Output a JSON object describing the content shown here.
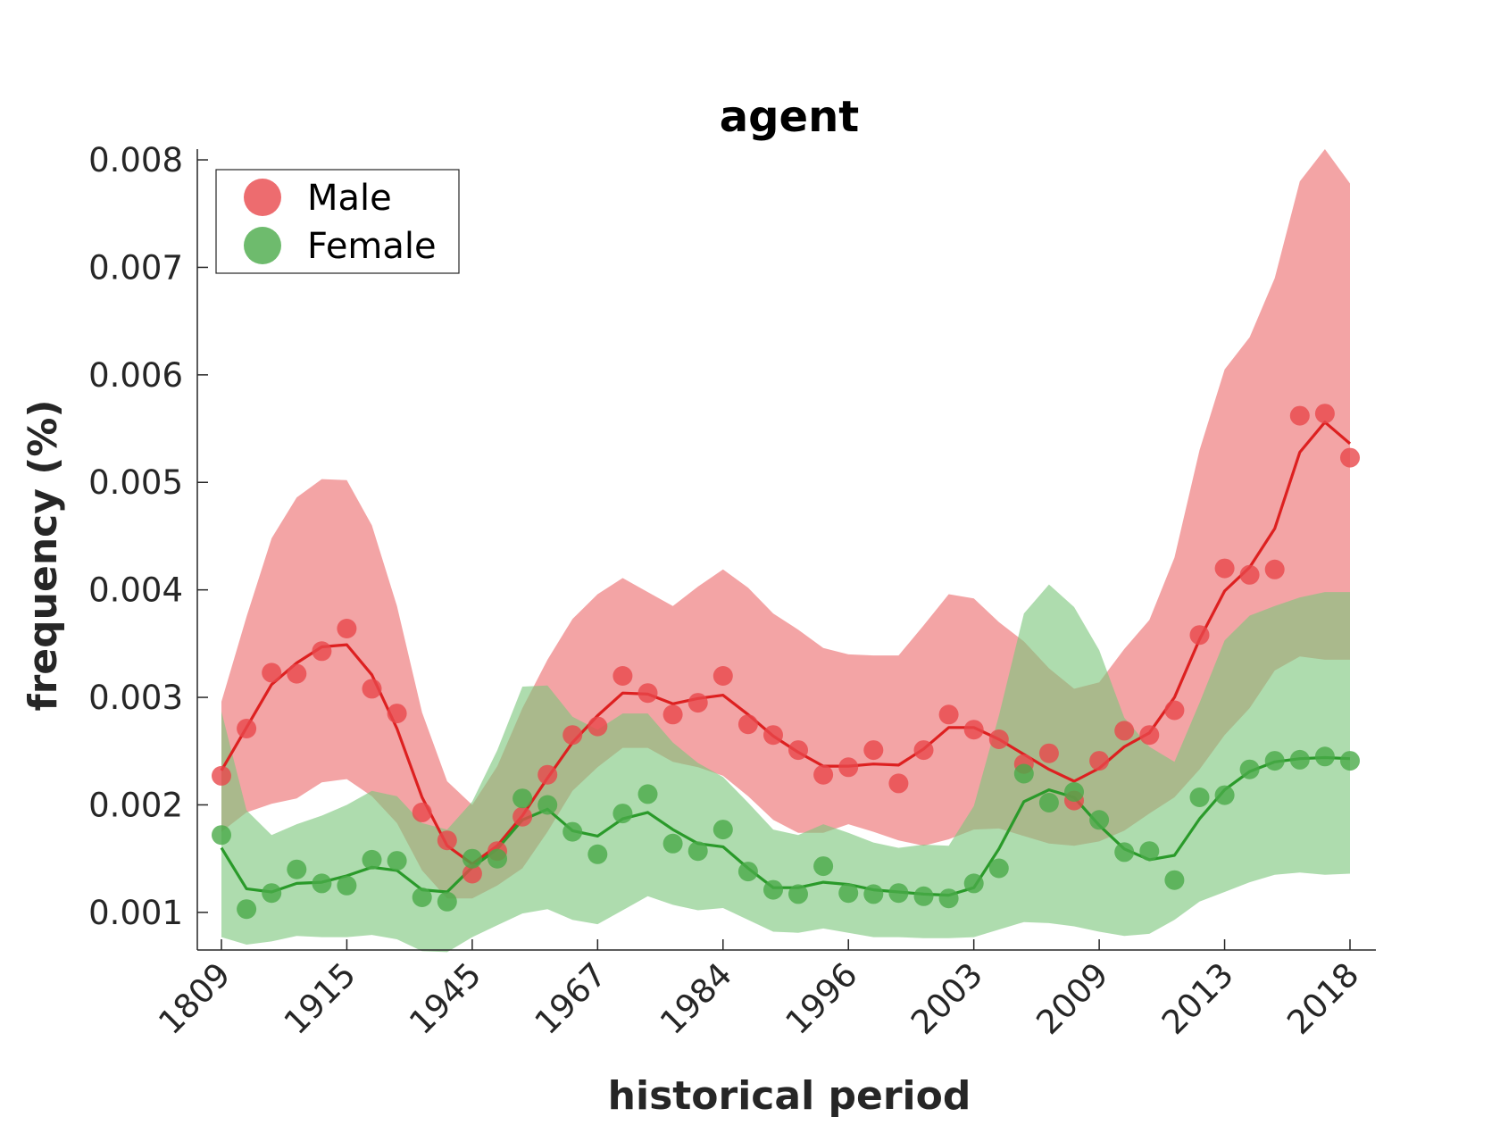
{
  "chart_data": {
    "type": "line",
    "title": "agent",
    "xlabel": "historical period",
    "ylabel": "frequency (%)",
    "ylim": [
      0.00065,
      0.0081
    ],
    "yticks": [
      "0.001",
      "0.002",
      "0.003",
      "0.004",
      "0.005",
      "0.006",
      "0.007",
      "0.008"
    ],
    "ytick_values": [
      0.001,
      0.002,
      0.003,
      0.004,
      0.005,
      0.006,
      0.007,
      0.008
    ],
    "xticks": [
      {
        "index": 0,
        "label": "1809"
      },
      {
        "index": 5,
        "label": "1915"
      },
      {
        "index": 10,
        "label": "1945"
      },
      {
        "index": 15,
        "label": "1967"
      },
      {
        "index": 20,
        "label": "1984"
      },
      {
        "index": 25,
        "label": "1996"
      },
      {
        "index": 30,
        "label": "2003"
      },
      {
        "index": 35,
        "label": "2009"
      },
      {
        "index": 40,
        "label": "2013"
      },
      {
        "index": 45,
        "label": "2018"
      }
    ],
    "n_points": 46,
    "legend_position": "top-left",
    "series": [
      {
        "name": "Male",
        "color": "#e8474b",
        "points": [
          0.00227,
          0.00271,
          0.00323,
          0.00322,
          0.00343,
          0.00364,
          0.00308,
          0.00285,
          0.00193,
          0.00167,
          0.00136,
          0.00157,
          0.00189,
          0.00228,
          0.00265,
          0.00273,
          0.0032,
          0.00304,
          0.00284,
          0.00295,
          0.0032,
          0.00275,
          0.00265,
          0.00251,
          0.00228,
          0.00235,
          0.00251,
          0.0022,
          0.00251,
          0.00284,
          0.0027,
          0.00261,
          0.00238,
          0.00248,
          0.00204,
          0.00241,
          0.00269,
          0.00265,
          0.00288,
          0.00358,
          0.0042,
          0.00414,
          0.00419,
          0.00562,
          0.00564,
          0.00523
        ],
        "smooth": [
          0.00232,
          0.00272,
          0.00312,
          0.00332,
          0.00347,
          0.00349,
          0.00321,
          0.00271,
          0.00207,
          0.00162,
          0.00145,
          0.00162,
          0.0019,
          0.00225,
          0.00258,
          0.00283,
          0.00304,
          0.00303,
          0.00294,
          0.00299,
          0.00302,
          0.00284,
          0.00264,
          0.00249,
          0.00236,
          0.00236,
          0.00238,
          0.00237,
          0.00252,
          0.00272,
          0.00272,
          0.00261,
          0.00247,
          0.00233,
          0.00222,
          0.00234,
          0.00254,
          0.00267,
          0.003,
          0.00354,
          0.00399,
          0.00421,
          0.00457,
          0.00528,
          0.00556,
          0.00536
        ],
        "upper": [
          0.00296,
          0.00375,
          0.00448,
          0.00486,
          0.00503,
          0.00502,
          0.0046,
          0.00385,
          0.00286,
          0.00222,
          0.002,
          0.00236,
          0.0029,
          0.00335,
          0.00373,
          0.00396,
          0.00411,
          0.00398,
          0.00385,
          0.00403,
          0.00419,
          0.00402,
          0.00378,
          0.00363,
          0.00346,
          0.0034,
          0.00339,
          0.00339,
          0.00367,
          0.00396,
          0.00392,
          0.0037,
          0.00352,
          0.00327,
          0.00308,
          0.00314,
          0.00345,
          0.00372,
          0.0043,
          0.0053,
          0.00605,
          0.00635,
          0.0069,
          0.0078,
          0.0081,
          0.00778
        ],
        "lower": [
          0.00175,
          0.00193,
          0.00201,
          0.00206,
          0.00221,
          0.00224,
          0.00208,
          0.00183,
          0.00139,
          0.00113,
          0.00113,
          0.00125,
          0.00141,
          0.00175,
          0.00213,
          0.00235,
          0.00253,
          0.00253,
          0.0024,
          0.00235,
          0.00227,
          0.00208,
          0.00186,
          0.00174,
          0.00174,
          0.00182,
          0.00175,
          0.00167,
          0.00162,
          0.00168,
          0.00177,
          0.00178,
          0.00171,
          0.00164,
          0.00162,
          0.00166,
          0.00176,
          0.00192,
          0.00207,
          0.00233,
          0.00265,
          0.0029,
          0.00325,
          0.00338,
          0.00335,
          0.00335
        ]
      },
      {
        "name": "Female",
        "color": "#2ca02c",
        "points": [
          0.00172,
          0.00103,
          0.00118,
          0.0014,
          0.00127,
          0.00125,
          0.00149,
          0.00148,
          0.00114,
          0.0011,
          0.0015,
          0.0015,
          0.00206,
          0.002,
          0.00175,
          0.00154,
          0.00192,
          0.0021,
          0.00164,
          0.00157,
          0.00177,
          0.00138,
          0.00121,
          0.00117,
          0.00143,
          0.00118,
          0.00117,
          0.00118,
          0.00115,
          0.00113,
          0.00127,
          0.00141,
          0.00229,
          0.00202,
          0.00212,
          0.00186,
          0.00156,
          0.00157,
          0.0013,
          0.00207,
          0.00209,
          0.00233,
          0.00241,
          0.00242,
          0.00245,
          0.00241
        ],
        "smooth": [
          0.0016,
          0.00122,
          0.00119,
          0.00127,
          0.00128,
          0.00134,
          0.00142,
          0.00139,
          0.00121,
          0.00119,
          0.00142,
          0.00159,
          0.00186,
          0.00196,
          0.00176,
          0.00171,
          0.00187,
          0.00193,
          0.00177,
          0.00164,
          0.00161,
          0.00141,
          0.00123,
          0.00123,
          0.00128,
          0.00126,
          0.00121,
          0.00119,
          0.00117,
          0.00116,
          0.00123,
          0.00159,
          0.00203,
          0.00214,
          0.00207,
          0.00181,
          0.00159,
          0.00149,
          0.00153,
          0.00187,
          0.00214,
          0.00231,
          0.0024,
          0.00243,
          0.00244,
          0.00243
        ],
        "upper": [
          0.00287,
          0.00195,
          0.00172,
          0.00182,
          0.0019,
          0.002,
          0.00213,
          0.00208,
          0.00183,
          0.00177,
          0.00203,
          0.00251,
          0.0031,
          0.00311,
          0.00282,
          0.0027,
          0.00285,
          0.00285,
          0.00258,
          0.00239,
          0.00226,
          0.00202,
          0.00177,
          0.00172,
          0.00182,
          0.00174,
          0.00165,
          0.0016,
          0.00163,
          0.00162,
          0.00199,
          0.00283,
          0.00378,
          0.00405,
          0.00384,
          0.00344,
          0.00281,
          0.00254,
          0.0024,
          0.00295,
          0.00353,
          0.00376,
          0.00385,
          0.00393,
          0.00398,
          0.00398
        ],
        "lower": [
          0.00077,
          0.0007,
          0.00073,
          0.00078,
          0.00077,
          0.00077,
          0.00079,
          0.00075,
          0.00064,
          0.00063,
          0.00077,
          0.00088,
          0.00099,
          0.00103,
          0.00093,
          0.00089,
          0.00102,
          0.00115,
          0.00107,
          0.00102,
          0.00104,
          0.00093,
          0.00082,
          0.00081,
          0.00085,
          0.00081,
          0.00077,
          0.00077,
          0.00076,
          0.00076,
          0.00077,
          0.00084,
          0.00091,
          0.0009,
          0.00087,
          0.00082,
          0.00078,
          0.0008,
          0.00093,
          0.0011,
          0.00119,
          0.00128,
          0.00135,
          0.00137,
          0.00135,
          0.00136
        ]
      }
    ]
  }
}
